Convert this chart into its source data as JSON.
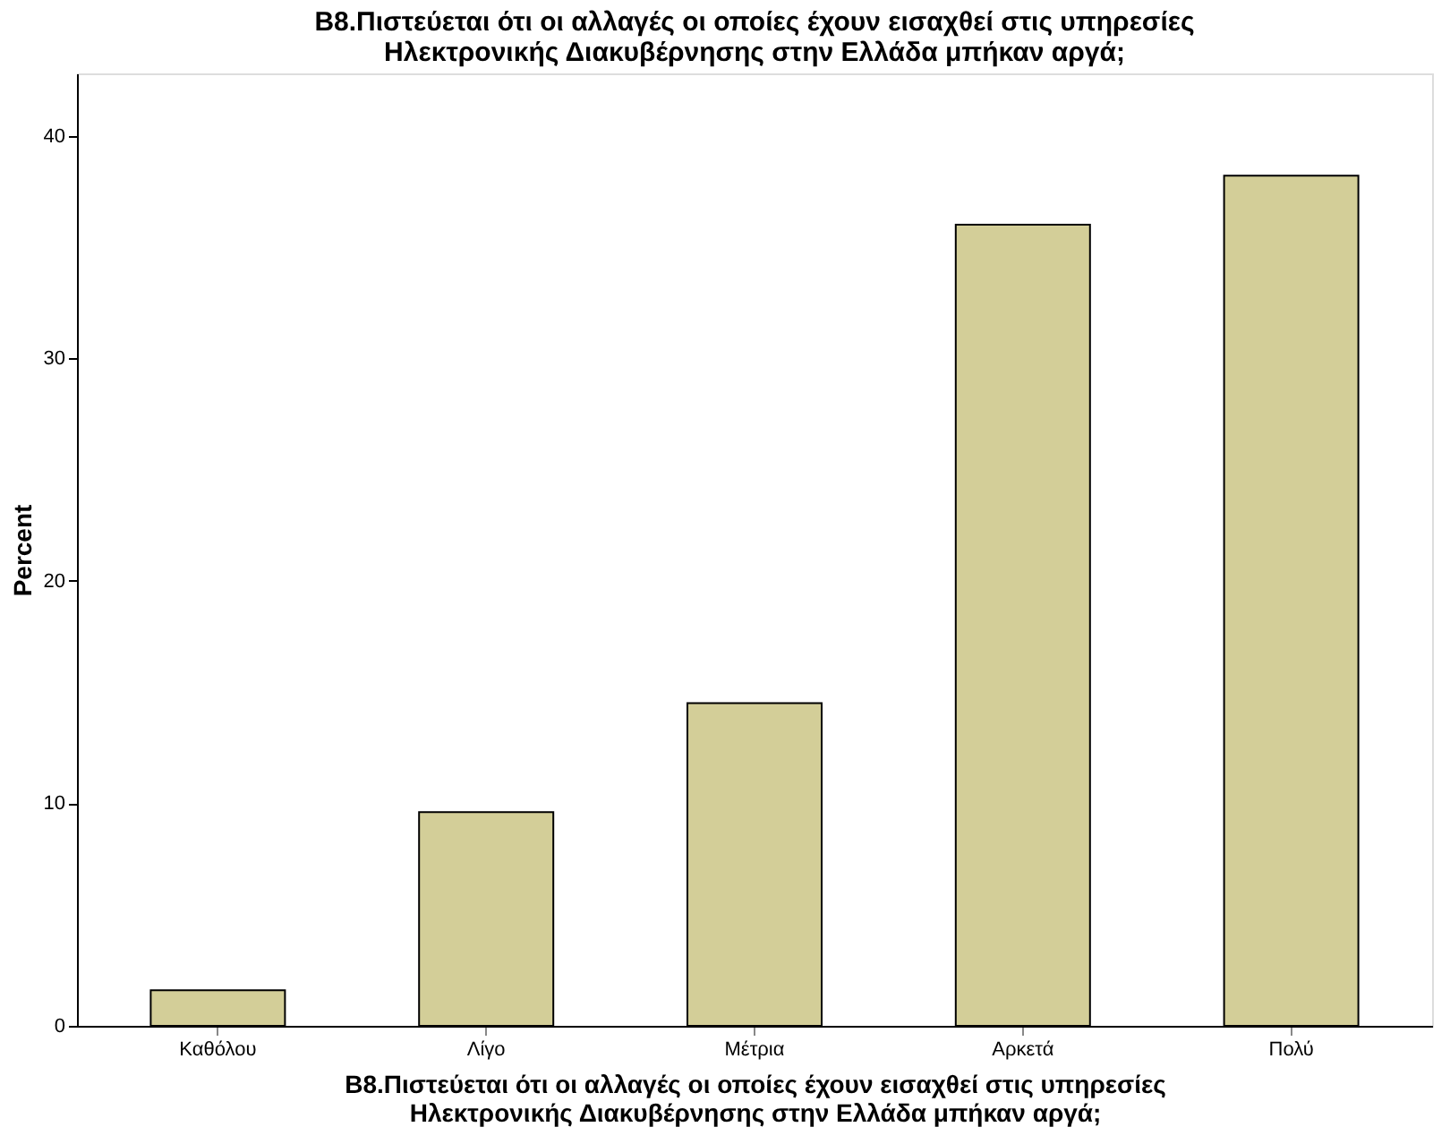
{
  "chart_data": {
    "type": "bar",
    "title": [
      "B8.Πιστεύεται ότι οι αλλαγές οι οποίες έχουν εισαχθεί στις υπηρεσίες",
      "Ηλεκτρονικής Διακυβέρνησης στην Ελλάδα μπήκαν αργά;"
    ],
    "xlabel": [
      "B8.Πιστεύεται ότι οι αλλαγές οι οποίες έχουν εισαχθεί στις υπηρεσίες",
      "Ηλεκτρονικής Διακυβέρνησης στην Ελλάδα μπήκαν αργά;"
    ],
    "ylabel": "Percent",
    "categories": [
      "Καθόλου",
      "Λίγο",
      "Μέτρια",
      "Αρκετά",
      "Πολύ"
    ],
    "values": [
      1.6,
      9.6,
      14.5,
      36.0,
      38.2
    ],
    "color": "#d3ce98",
    "ylim": [
      0,
      42.8
    ],
    "yticks": [
      0,
      10,
      20,
      30,
      40
    ],
    "grid": false
  }
}
